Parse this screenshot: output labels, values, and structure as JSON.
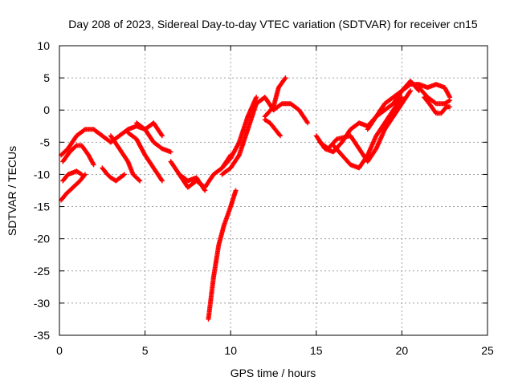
{
  "chart_data": {
    "type": "scatter",
    "title": "Day 208 of 2023, Sidereal Day-to-day VTEC variation (SDTVAR) for receiver cn15",
    "xlabel": "GPS time / hours",
    "ylabel": "SDTVAR / TECUs",
    "xlim": [
      0,
      25
    ],
    "ylim": [
      -35,
      10
    ],
    "xticks": [
      "0",
      "5",
      "10",
      "15",
      "20",
      "25"
    ],
    "yticks": [
      "10",
      "5",
      "0",
      "-5",
      "-10",
      "-15",
      "-20",
      "-25",
      "-30",
      "-35"
    ],
    "grid": true,
    "marker": "+",
    "color": "#ff0000",
    "series": [
      {
        "name": "track-1",
        "x": [
          0.1,
          0.5,
          1.0,
          1.5,
          2.0,
          2.5,
          3.0,
          3.5,
          4.0,
          4.5,
          5.0,
          5.5,
          6.0
        ],
        "y": [
          -7,
          -6,
          -4,
          -3,
          -3,
          -4,
          -5,
          -4,
          -3,
          -2.5,
          -3,
          -2,
          -4
        ]
      },
      {
        "name": "track-2",
        "x": [
          0.2,
          0.6,
          1.0,
          1.3,
          1.7,
          2.0
        ],
        "y": [
          -8,
          -6.5,
          -5.5,
          -5.5,
          -7,
          -8.5
        ]
      },
      {
        "name": "track-3",
        "x": [
          0.1,
          0.4,
          0.8,
          1.2,
          1.5
        ],
        "y": [
          -14,
          -13,
          -12,
          -11,
          -10
        ]
      },
      {
        "name": "track-4",
        "x": [
          0.2,
          0.5,
          1.0,
          1.3
        ],
        "y": [
          -11,
          -10,
          -9.5,
          -10
        ]
      },
      {
        "name": "track-5",
        "x": [
          2.5,
          2.8,
          3.0,
          3.3,
          3.8
        ],
        "y": [
          -9,
          -10,
          -10.5,
          -11,
          -10
        ]
      },
      {
        "name": "track-6",
        "x": [
          3.0,
          3.5,
          4.0,
          4.3,
          4.7
        ],
        "y": [
          -4,
          -6,
          -8,
          -10,
          -11
        ]
      },
      {
        "name": "track-7",
        "x": [
          4.0,
          4.5,
          5.0,
          5.5,
          6.0
        ],
        "y": [
          -3.5,
          -4.5,
          -7,
          -9,
          -11
        ]
      },
      {
        "name": "track-8",
        "x": [
          4.5,
          5.0,
          5.5,
          6.0,
          6.5
        ],
        "y": [
          -2,
          -3,
          -5,
          -6,
          -6.5
        ]
      },
      {
        "name": "track-9",
        "x": [
          6.5,
          7.0,
          7.5,
          8.0,
          8.5,
          9.0,
          9.5,
          10.0
        ],
        "y": [
          -8,
          -10,
          -12,
          -11,
          -12,
          -10,
          -9,
          -7
        ]
      },
      {
        "name": "track-10",
        "x": [
          7.0,
          7.5,
          8.0,
          8.5
        ],
        "y": [
          -10,
          -11,
          -10.5,
          -12.5
        ]
      },
      {
        "name": "track-11",
        "x": [
          8.7,
          9.0,
          9.3,
          9.6,
          9.8,
          10.0,
          10.3
        ],
        "y": [
          -32.5,
          -26,
          -21,
          -18,
          -16.5,
          -15,
          -12.5
        ]
      },
      {
        "name": "track-12",
        "x": [
          9.5,
          10.0,
          10.5,
          11.0,
          11.5,
          12.0,
          12.5,
          13.0,
          13.5,
          14.0,
          14.5
        ],
        "y": [
          -10,
          -9,
          -7,
          -3,
          1,
          2,
          0,
          1,
          1,
          0,
          -2
        ]
      },
      {
        "name": "track-13",
        "x": [
          9.5,
          10.0,
          10.5,
          11.0,
          11.5
        ],
        "y": [
          -9,
          -7.5,
          -5,
          -1,
          2
        ]
      },
      {
        "name": "track-14",
        "x": [
          12.0,
          12.5,
          12.8,
          13.2
        ],
        "y": [
          -1,
          0.5,
          3.5,
          5
        ]
      },
      {
        "name": "track-15",
        "x": [
          12.0,
          12.3,
          12.6,
          12.9
        ],
        "y": [
          -1.5,
          -2,
          -3,
          -4
        ]
      },
      {
        "name": "track-16",
        "x": [
          15.0,
          15.5,
          16.0,
          16.5,
          17.0,
          17.5,
          18.0,
          18.5,
          19.0,
          19.5,
          20.0,
          20.5,
          21.0,
          21.5,
          22.0,
          22.5,
          22.8
        ],
        "y": [
          -4,
          -6,
          -6.5,
          -5,
          -3,
          -2,
          -2.5,
          -1,
          0,
          1,
          3,
          4,
          4,
          3.5,
          4,
          3.5,
          2
        ]
      },
      {
        "name": "track-17",
        "x": [
          15.2,
          15.7,
          16.2,
          17.0,
          17.5,
          18.0,
          18.5,
          19.0,
          19.5,
          20.0,
          20.5
        ],
        "y": [
          -5,
          -6,
          -4.5,
          -4,
          -6,
          -8,
          -6,
          -3,
          -1,
          1,
          3
        ]
      },
      {
        "name": "track-18",
        "x": [
          16.0,
          16.5,
          17.0,
          17.5,
          18.0,
          18.5,
          19.0,
          19.5,
          20.0
        ],
        "y": [
          -5.5,
          -7,
          -8.5,
          -9,
          -7,
          -4,
          -2,
          0,
          2
        ]
      },
      {
        "name": "track-19",
        "x": [
          18.0,
          18.5,
          19.0,
          19.5,
          20.0,
          20.5,
          21.0
        ],
        "y": [
          -3,
          -1,
          1,
          2,
          3,
          4.5,
          3
        ]
      },
      {
        "name": "track-20",
        "x": [
          21.3,
          21.6,
          22.0,
          22.3,
          22.6,
          22.8
        ],
        "y": [
          2,
          1,
          -0.5,
          -0.5,
          0.5,
          0.5
        ]
      },
      {
        "name": "track-21",
        "x": [
          21.0,
          21.5,
          22.0,
          22.5,
          22.8
        ],
        "y": [
          3.5,
          2,
          1,
          1,
          1.5
        ]
      }
    ]
  }
}
